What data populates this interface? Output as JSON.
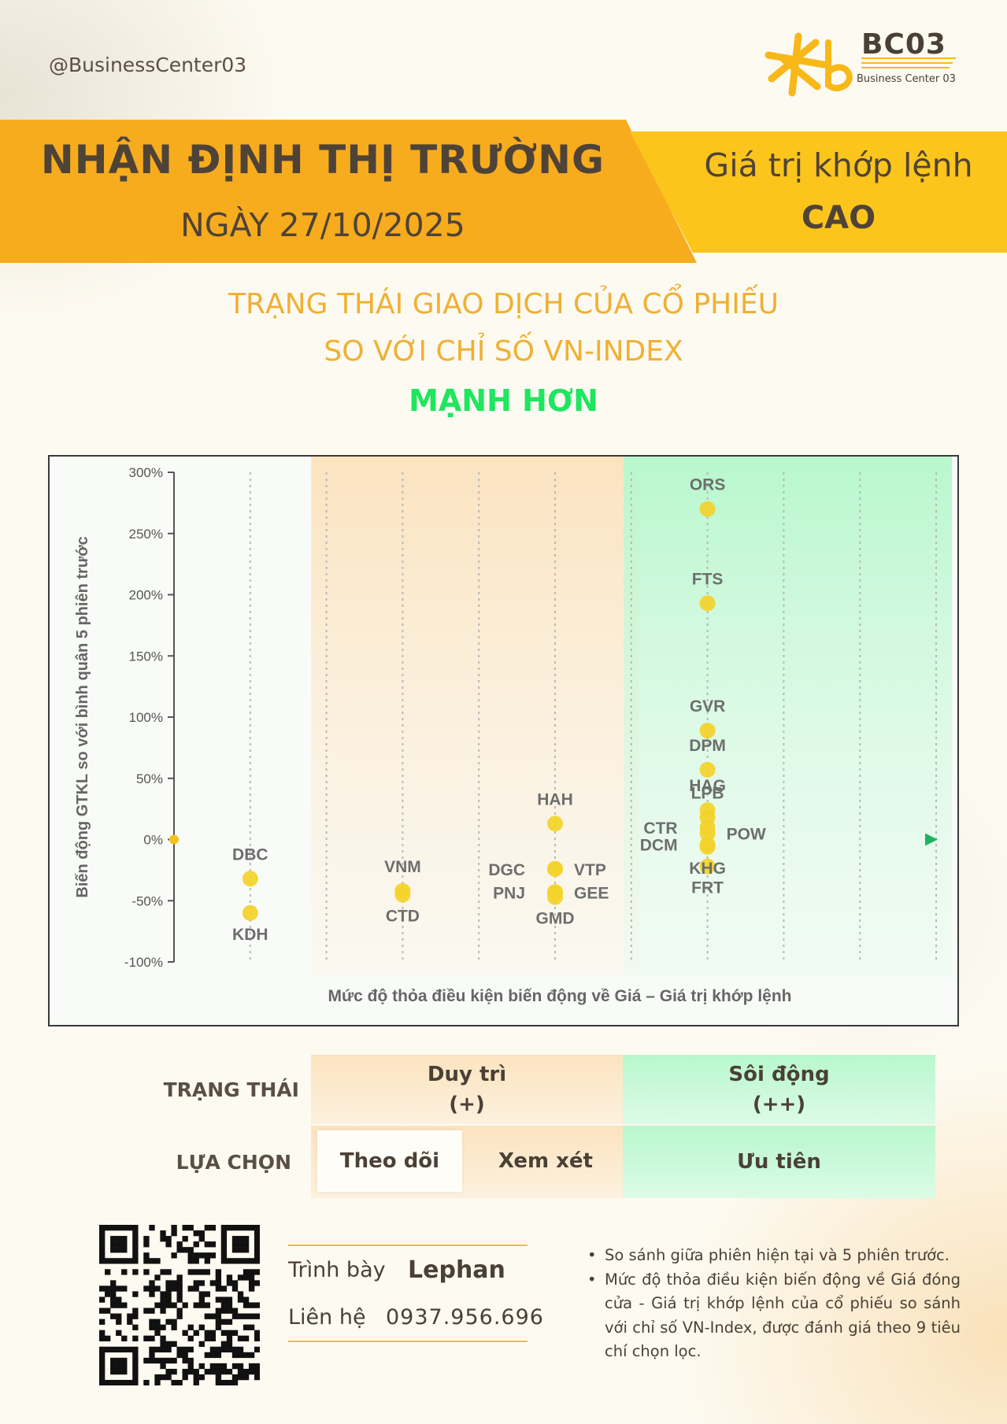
{
  "header": {
    "handle": "@BusinessCenter03",
    "logo_title": "BC03",
    "logo_sub": "Business Center 03"
  },
  "banner": {
    "title": "NHẬN ĐỊNH THỊ TRƯỜNG",
    "date": "NGÀY 27/10/2025",
    "right_label": "Giá trị khớp lệnh",
    "right_value": "CAO"
  },
  "subtitle": {
    "line1": "TRẠNG THÁI GIAO DỊCH CỦA CỔ PHIẾU",
    "line2": "SO VỚI CHỈ SỐ VN-INDEX",
    "status": "MẠNH HƠN"
  },
  "colors": {
    "banner_orange": "#f7ac1e",
    "banner_yellow": "#fbc51c",
    "subtitle_gold": "#f0b033",
    "status_green": "#1ee65f",
    "point_yellow": "#f3d22a",
    "zone_duytri": "#fbe3bf",
    "zone_soidong": "#b8f7cd"
  },
  "chart_data": {
    "type": "scatter",
    "xlabel": "Mức độ thỏa điều kiện biến động về Giá – Giá trị khớp lệnh",
    "ylabel": "Biến động GTKL so với bình quân 5 phiên trước",
    "ylim": [
      -100,
      300
    ],
    "xlim": [
      0,
      10
    ],
    "yticks": [
      "300%",
      "250%",
      "200%",
      "150%",
      "100%",
      "50%",
      "0%",
      "-50%",
      "-100%"
    ],
    "ytick_values": [
      300,
      250,
      200,
      150,
      100,
      50,
      0,
      -50,
      -100
    ],
    "grid": "vertical dotted lines",
    "zones": [
      {
        "name": "Duy trì",
        "x_from": 1.8,
        "x_to": 5.9
      },
      {
        "name": "Sôi động",
        "x_from": 5.9,
        "x_to": 10
      }
    ],
    "points": [
      {
        "label": "DBC",
        "x": 1,
        "y": -32,
        "lp": "above"
      },
      {
        "label": "KDH",
        "x": 1,
        "y": -60,
        "lp": "below"
      },
      {
        "label": "VNM",
        "x": 3,
        "y": -42,
        "lp": "above"
      },
      {
        "label": "CTD",
        "x": 3,
        "y": -45,
        "lp": "below"
      },
      {
        "label": "HAH",
        "x": 5,
        "y": 13,
        "lp": "above"
      },
      {
        "label": "DGC",
        "x": 5,
        "y": -24,
        "lp": "left"
      },
      {
        "label": "VTP",
        "x": 5,
        "y": -24,
        "lp": "right"
      },
      {
        "label": "PNJ",
        "x": 5,
        "y": -43,
        "lp": "left"
      },
      {
        "label": "GEE",
        "x": 5,
        "y": -43,
        "lp": "right"
      },
      {
        "label": "GMD",
        "x": 5,
        "y": -47,
        "lp": "below"
      },
      {
        "label": "ORS",
        "x": 7,
        "y": 270,
        "lp": "above"
      },
      {
        "label": "FTS",
        "x": 7,
        "y": 193,
        "lp": "above"
      },
      {
        "label": "GVR",
        "x": 7,
        "y": 89,
        "lp": "above"
      },
      {
        "label": "DPM",
        "x": 7,
        "y": 57,
        "lp": "above"
      },
      {
        "label": "HAG",
        "x": 7,
        "y": 24,
        "lp": "above"
      },
      {
        "label": "LPB",
        "x": 7,
        "y": 18,
        "lp": "above"
      },
      {
        "label": "CTR",
        "x": 7,
        "y": 10,
        "lp": "left"
      },
      {
        "label": "POW",
        "x": 7,
        "y": 5,
        "lp": "right"
      },
      {
        "label": "DCM",
        "x": 7,
        "y": -4,
        "lp": "left"
      },
      {
        "label": "KHG",
        "x": 7,
        "y": -6,
        "lp": "below"
      },
      {
        "label": "FRT",
        "x": 7,
        "y": -22,
        "lp": "below"
      }
    ]
  },
  "status_table": {
    "row1_label": "TRẠNG THÁI",
    "row2_label": "LỰA CHỌN",
    "duytri": "Duy trì",
    "duytri_sign": "(+)",
    "soidong": "Sôi động",
    "soidong_sign": "(++)",
    "theodoi": "Theo dõi",
    "xemxet": "Xem xét",
    "uutien": "Ưu tiên"
  },
  "contact": {
    "presenter_label": "Trình bày",
    "presenter": "Lephan",
    "contact_label": "Liên hệ",
    "phone": "0937.956.696"
  },
  "notes": [
    "So sánh giữa phiên hiện tại và 5 phiên trước.",
    "Mức độ thỏa điều kiện biến động về Giá đóng cửa - Giá trị khớp lệnh của cổ phiếu so sánh với chỉ số VN-Index, được đánh giá theo 9 tiêu chí chọn lọc."
  ]
}
